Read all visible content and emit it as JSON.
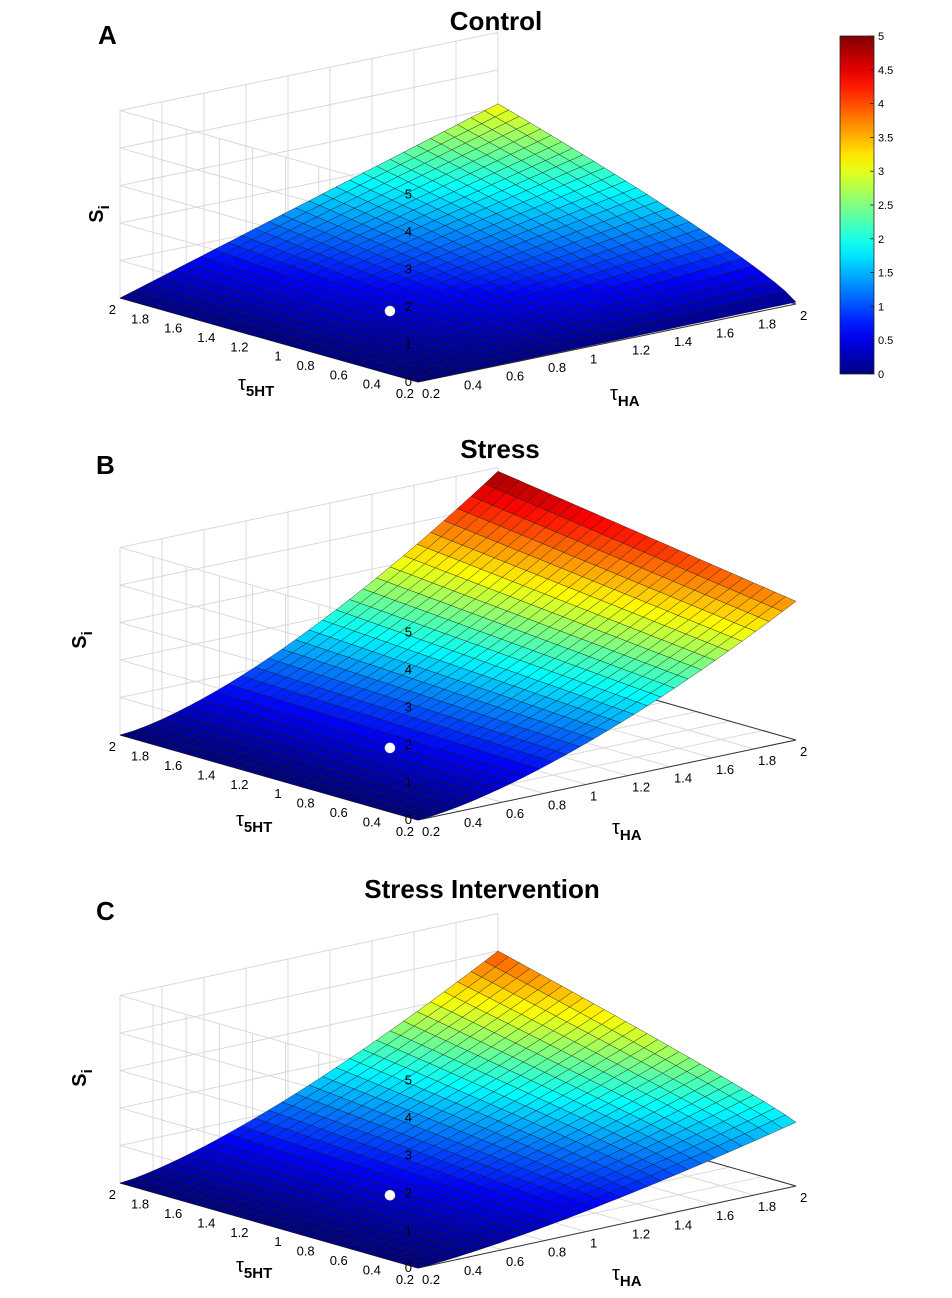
{
  "colors": {
    "grid": "#d9d9d9",
    "axis": "#333333",
    "mesh": "#141414",
    "marker": "#ffffff"
  },
  "colormap": "jet",
  "chart_data": [
    {
      "type": "surface",
      "panel_label": "A",
      "title": "Control",
      "xlabel": "τ",
      "xlabel_sub": "HA",
      "ylabel": "τ",
      "ylabel_sub": "5HT",
      "zlabel": "S",
      "zlabel_sub": "i",
      "xlim": [
        0.2,
        2
      ],
      "ylim": [
        0.2,
        2
      ],
      "zlim": [
        0,
        5
      ],
      "x_ticks": [
        "0.2",
        "0.4",
        "0.6",
        "0.8",
        "1",
        "1.2",
        "1.4",
        "1.6",
        "1.8",
        "2"
      ],
      "y_ticks": [
        "0.2",
        "0.4",
        "0.6",
        "0.8",
        "1",
        "1.2",
        "1.4",
        "1.6",
        "1.8",
        "2"
      ],
      "z_ticks": [
        "0",
        "1",
        "2",
        "3",
        "4",
        "5"
      ],
      "corner_values": {
        "x_min_y_min": 0.0,
        "x_max_y_min": 0.05,
        "x_min_y_max": 0.0,
        "x_max_y_max": 3.1
      },
      "x_curvature": 1.0,
      "y_curvature": 0.8,
      "marker": {
        "x": 0.2,
        "y": 0.2,
        "z": 0.0
      },
      "colorbar": {
        "range": [
          0,
          5
        ],
        "ticks": [
          "0",
          "0.5",
          "1",
          "1.5",
          "2",
          "2.5",
          "3",
          "3.5",
          "4",
          "4.5",
          "5"
        ]
      }
    },
    {
      "type": "surface",
      "panel_label": "B",
      "title": "Stress",
      "xlabel": "τ",
      "xlabel_sub": "HA",
      "ylabel": "τ",
      "ylabel_sub": "5HT",
      "zlabel": "S",
      "zlabel_sub": "i",
      "xlim": [
        0.2,
        2
      ],
      "ylim": [
        0.2,
        2
      ],
      "zlim": [
        0,
        5
      ],
      "x_ticks": [
        "0.2",
        "0.4",
        "0.6",
        "0.8",
        "1",
        "1.2",
        "1.4",
        "1.6",
        "1.8",
        "2"
      ],
      "y_ticks": [
        "0.2",
        "0.4",
        "0.6",
        "0.8",
        "1",
        "1.2",
        "1.4",
        "1.6",
        "1.8",
        "2"
      ],
      "z_ticks": [
        "0",
        "1",
        "2",
        "3",
        "4",
        "5"
      ],
      "corner_values": {
        "x_min_y_min": 0.0,
        "x_max_y_min": 3.7,
        "x_min_y_max": 0.0,
        "x_max_y_max": 4.9
      },
      "x_curvature": 1.5,
      "y_curvature": 1.0,
      "marker": {
        "x": 0.2,
        "y": 0.2,
        "z": 0.0
      }
    },
    {
      "type": "surface",
      "panel_label": "C",
      "title": "Stress Intervention",
      "xlabel": "τ",
      "xlabel_sub": "HA",
      "ylabel": "τ",
      "ylabel_sub": "5HT",
      "zlabel": "S",
      "zlabel_sub": "i",
      "xlim": [
        0.2,
        2
      ],
      "ylim": [
        0.2,
        2
      ],
      "zlim": [
        0,
        5
      ],
      "x_ticks": [
        "0.2",
        "0.4",
        "0.6",
        "0.8",
        "1",
        "1.2",
        "1.4",
        "1.6",
        "1.8",
        "2"
      ],
      "y_ticks": [
        "0.2",
        "0.4",
        "0.6",
        "0.8",
        "1",
        "1.2",
        "1.4",
        "1.6",
        "1.8",
        "2"
      ],
      "z_ticks": [
        "0",
        "1",
        "2",
        "3",
        "4",
        "5"
      ],
      "corner_values": {
        "x_min_y_min": 0.0,
        "x_max_y_min": 1.7,
        "x_min_y_max": 0.0,
        "x_max_y_max": 4.0
      },
      "x_curvature": 1.4,
      "y_curvature": 0.9,
      "marker": {
        "x": 0.2,
        "y": 0.2,
        "z": 0.0
      }
    }
  ]
}
